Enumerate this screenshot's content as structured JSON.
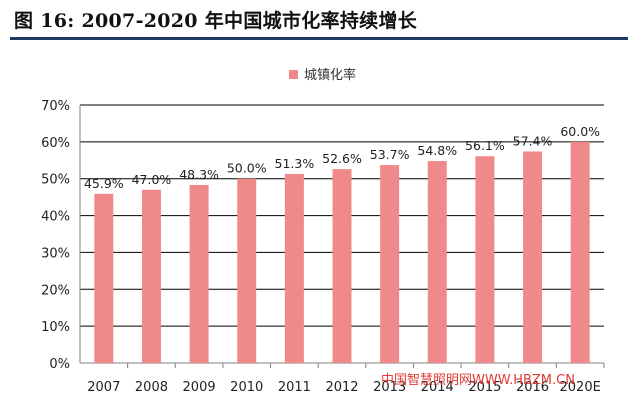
{
  "figure_title": "图 16: 2007-2020 年中国城市化率持续增长",
  "watermark": "中国智慧照明网WWW.HBZM.CN",
  "colors": {
    "bar": "#F08A8A",
    "title_rule": "#1F3864",
    "axis": "#808080",
    "gridline": "#000000",
    "watermark": "#E0302A"
  },
  "chart_data": {
    "type": "bar",
    "categories": [
      "2007",
      "2008",
      "2009",
      "2010",
      "2011",
      "2012",
      "2013",
      "2014",
      "2015",
      "2016",
      "2020E"
    ],
    "series": [
      {
        "name": "城镇化率",
        "values": [
          45.9,
          47.0,
          48.3,
          50.0,
          51.3,
          52.6,
          53.7,
          54.8,
          56.1,
          57.4,
          60.0
        ],
        "labels": [
          "45.9%",
          "47.0%",
          "48.3%",
          "50.0%",
          "51.3%",
          "52.6%",
          "53.7%",
          "54.8%",
          "56.1%",
          "57.4%",
          "60.0%"
        ]
      }
    ],
    "title": "",
    "xlabel": "",
    "ylabel": "",
    "ylim": [
      0,
      70
    ],
    "yticks": [
      0,
      10,
      20,
      30,
      40,
      50,
      60,
      70
    ],
    "ytick_labels": [
      "0%",
      "10%",
      "20%",
      "30%",
      "40%",
      "50%",
      "60%",
      "70%"
    ],
    "grid": true,
    "legend_position": "top-center"
  }
}
